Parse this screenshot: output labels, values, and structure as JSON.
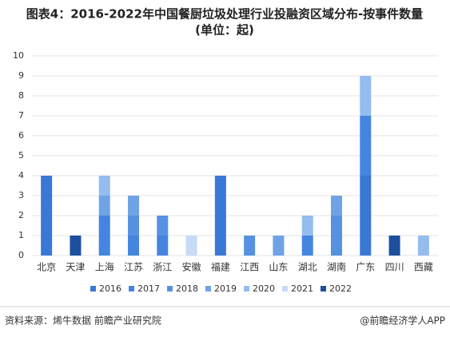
{
  "chart_data": {
    "type": "stacked_bar",
    "title": "图表4：2016-2022年中国餐厨垃圾处理行业投融资区域分布-按事件数量",
    "subtitle": "(单位：起)",
    "categories": [
      "北京",
      "天津",
      "上海",
      "江苏",
      "浙江",
      "安徽",
      "福建",
      "江西",
      "山东",
      "湖北",
      "湖南",
      "广东",
      "四川",
      "西藏"
    ],
    "series": [
      {
        "name": "2016",
        "color": "#3a78d6",
        "values": [
          4,
          0,
          0,
          0,
          0,
          0,
          4,
          0,
          0,
          0,
          0,
          4,
          0,
          0
        ]
      },
      {
        "name": "2017",
        "color": "#4485e0",
        "values": [
          0,
          0,
          2,
          1,
          1,
          0,
          0,
          0,
          0,
          1,
          0,
          3,
          0,
          0
        ]
      },
      {
        "name": "2018",
        "color": "#5692e2",
        "values": [
          0,
          0,
          0,
          1,
          1,
          0,
          0,
          1,
          0,
          0,
          2,
          0,
          0,
          0
        ]
      },
      {
        "name": "2019",
        "color": "#6fa3e6",
        "values": [
          0,
          0,
          1,
          1,
          0,
          0,
          0,
          0,
          1,
          0,
          1,
          0,
          0,
          0
        ]
      },
      {
        "name": "2020",
        "color": "#94bcee",
        "values": [
          0,
          0,
          1,
          0,
          0,
          0,
          0,
          0,
          0,
          1,
          0,
          2,
          0,
          1
        ]
      },
      {
        "name": "2021",
        "color": "#c6dbf6",
        "values": [
          0,
          0,
          0,
          0,
          0,
          1,
          0,
          0,
          0,
          0,
          0,
          0,
          0,
          0
        ]
      },
      {
        "name": "2022",
        "color": "#1c4f9e",
        "values": [
          0,
          1,
          0,
          0,
          0,
          0,
          0,
          0,
          0,
          0,
          0,
          0,
          1,
          0
        ]
      }
    ],
    "ylim": [
      0,
      10
    ],
    "yticks": [
      0,
      1,
      2,
      3,
      4,
      5,
      6,
      7,
      8,
      9,
      10
    ],
    "grid": true,
    "source": "资料来源：烯牛数据 前瞻产业研究院",
    "brand": "@前瞻经济学人APP"
  }
}
